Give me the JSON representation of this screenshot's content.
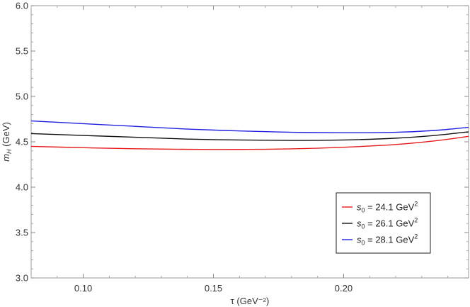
{
  "chart_data": {
    "type": "line",
    "xlabel": "τ (GeV⁻²)",
    "ylabel": "m_H (GeV)",
    "xlim": [
      0.08,
      0.248
    ],
    "ylim": [
      3.0,
      6.0
    ],
    "x_ticks": [
      0.1,
      0.15,
      0.2
    ],
    "x_tick_labels": [
      "0.10",
      "0.15",
      "0.20"
    ],
    "y_ticks": [
      3.0,
      3.5,
      4.0,
      4.5,
      5.0,
      5.5,
      6.0
    ],
    "y_tick_labels": [
      "3.0",
      "3.5",
      "4.0",
      "4.5",
      "5.0",
      "5.5",
      "6.0"
    ],
    "legend_position": "bottom-right",
    "grid": false,
    "series": [
      {
        "name": "s₀ = 24.1 GeV²",
        "legend_main": "s",
        "legend_sub": "0",
        "legend_rest": " = 24.1 GeV",
        "legend_sup": "2",
        "color": "#e41a1c",
        "x": [
          0.08,
          0.1,
          0.12,
          0.14,
          0.16,
          0.18,
          0.2,
          0.22,
          0.235,
          0.248
        ],
        "y": [
          4.45,
          4.435,
          4.423,
          4.417,
          4.416,
          4.422,
          4.44,
          4.47,
          4.51,
          4.56
        ]
      },
      {
        "name": "s₀ = 26.1 GeV²",
        "legend_main": "s",
        "legend_sub": "0",
        "legend_rest": " = 26.1 GeV",
        "legend_sup": "2",
        "color": "#111111",
        "x": [
          0.08,
          0.1,
          0.12,
          0.14,
          0.16,
          0.18,
          0.2,
          0.22,
          0.235,
          0.248
        ],
        "y": [
          4.59,
          4.57,
          4.55,
          4.53,
          4.52,
          4.515,
          4.52,
          4.54,
          4.57,
          4.61
        ]
      },
      {
        "name": "s₀ = 28.1 GeV²",
        "legend_main": "s",
        "legend_sub": "0",
        "legend_rest": " = 28.1 GeV",
        "legend_sup": "2",
        "color": "#2020e0",
        "x": [
          0.08,
          0.1,
          0.12,
          0.14,
          0.16,
          0.18,
          0.2,
          0.22,
          0.235,
          0.248
        ],
        "y": [
          4.73,
          4.7,
          4.67,
          4.64,
          4.62,
          4.605,
          4.6,
          4.605,
          4.625,
          4.66
        ]
      }
    ]
  }
}
